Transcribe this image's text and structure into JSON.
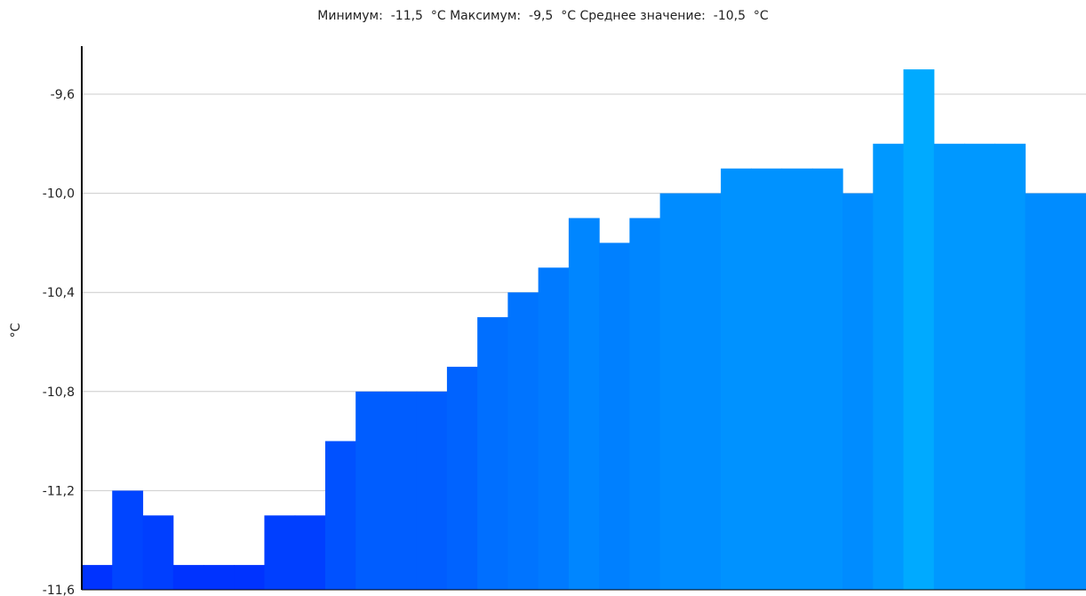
{
  "chart_data": {
    "type": "bar",
    "title": "Минимум:  -11,5  °C Максимум:  -9,5  °C Среднее значение:  -10,5  °C",
    "ylabel": "°C",
    "xlabel": "",
    "ylim": [
      -11.6,
      -9.4
    ],
    "yticks": [
      "-9,6",
      "-10,0",
      "-10,4",
      "-10,8",
      "-11,2",
      "-11,6"
    ],
    "ytick_values": [
      -9.6,
      -10.0,
      -10.4,
      -10.8,
      -11.2,
      -11.6
    ],
    "grid": true,
    "values": [
      -11.5,
      -11.2,
      -11.3,
      -11.5,
      -11.5,
      -11.5,
      -11.3,
      -11.3,
      -11.0,
      -10.8,
      -10.8,
      -10.8,
      -10.7,
      -10.5,
      -10.4,
      -10.3,
      -10.1,
      -10.2,
      -10.1,
      -10.0,
      -10.0,
      -9.9,
      -9.9,
      -9.9,
      -9.9,
      -10.0,
      -9.8,
      -9.5,
      -9.8,
      -9.8,
      -9.8,
      -10.0,
      -10.0
    ],
    "color_low": "#0033ff",
    "color_high": "#00aaff",
    "grid_color": "#cccccc",
    "axis_color": "#000000"
  }
}
